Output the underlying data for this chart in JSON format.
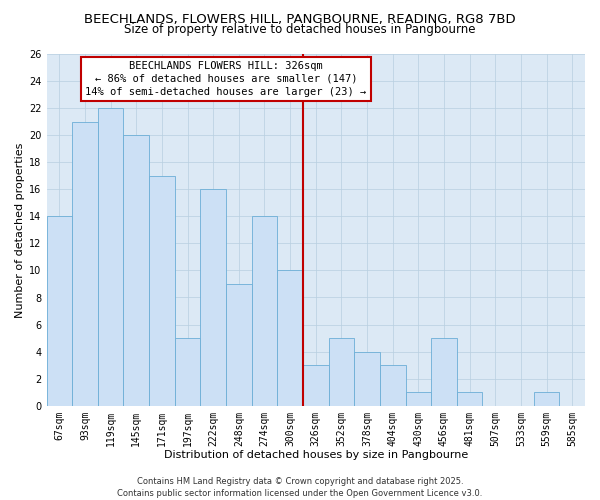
{
  "title": "BEECHLANDS, FLOWERS HILL, PANGBOURNE, READING, RG8 7BD",
  "subtitle": "Size of property relative to detached houses in Pangbourne",
  "xlabel": "Distribution of detached houses by size in Pangbourne",
  "ylabel": "Number of detached properties",
  "bins": [
    "67sqm",
    "93sqm",
    "119sqm",
    "145sqm",
    "171sqm",
    "197sqm",
    "222sqm",
    "248sqm",
    "274sqm",
    "300sqm",
    "326sqm",
    "352sqm",
    "378sqm",
    "404sqm",
    "430sqm",
    "456sqm",
    "481sqm",
    "507sqm",
    "533sqm",
    "559sqm",
    "585sqm"
  ],
  "values": [
    14,
    21,
    22,
    20,
    17,
    5,
    16,
    9,
    14,
    10,
    3,
    5,
    4,
    3,
    1,
    5,
    1,
    0,
    0,
    1,
    0
  ],
  "bar_color": "#cce0f5",
  "bar_edge_color": "#6baed6",
  "vline_color": "#c00000",
  "vline_bin_index": 10,
  "ylim": [
    0,
    26
  ],
  "yticks": [
    0,
    2,
    4,
    6,
    8,
    10,
    12,
    14,
    16,
    18,
    20,
    22,
    24,
    26
  ],
  "annotation_title": "BEECHLANDS FLOWERS HILL: 326sqm",
  "annotation_line1": "← 86% of detached houses are smaller (147)",
  "annotation_line2": "14% of semi-detached houses are larger (23) →",
  "annotation_box_color": "#ffffff",
  "annotation_box_edge": "#c00000",
  "footer1": "Contains HM Land Registry data © Crown copyright and database right 2025.",
  "footer2": "Contains public sector information licensed under the Open Government Licence v3.0.",
  "bg_color": "#dce9f5",
  "fig_bg_color": "#ffffff",
  "grid_color": "#b8cfe0",
  "title_fontsize": 9.5,
  "subtitle_fontsize": 8.5,
  "axis_label_fontsize": 8,
  "tick_fontsize": 7,
  "annotation_fontsize": 7.5,
  "footer_fontsize": 6
}
